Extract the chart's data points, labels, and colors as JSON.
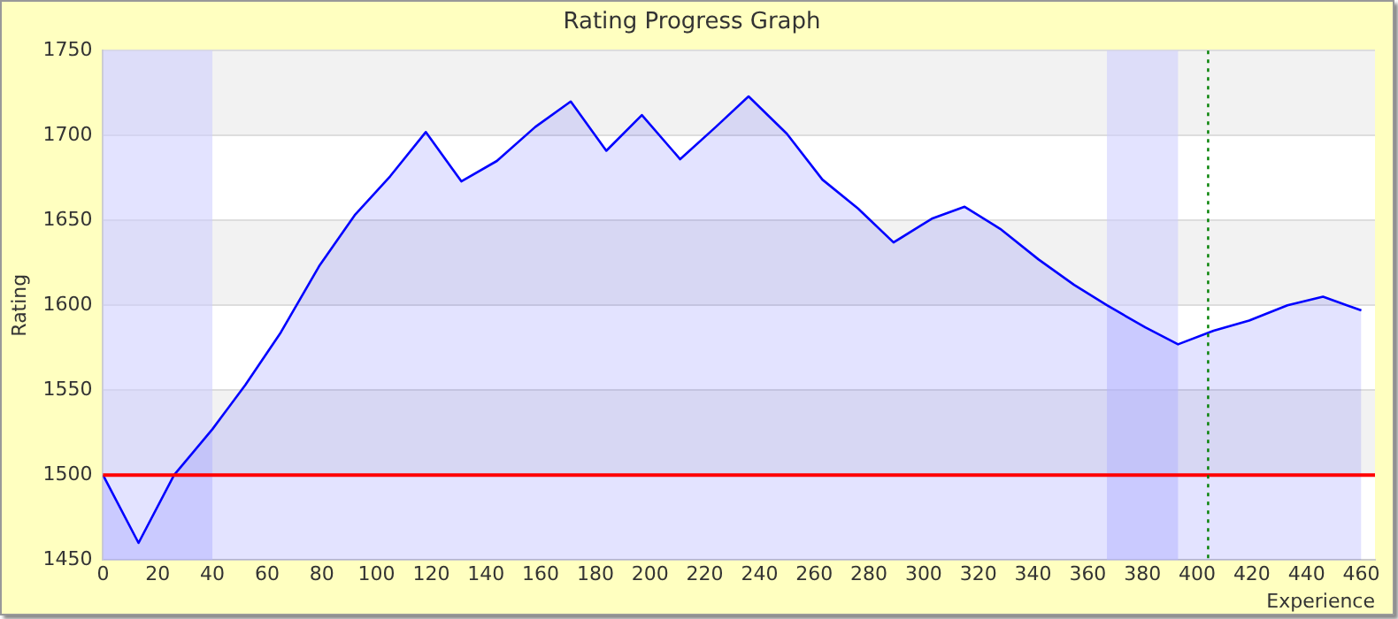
{
  "chart_data": {
    "type": "area",
    "title": "Rating Progress Graph",
    "xlabel": "Experience",
    "ylabel": "Rating",
    "x": [
      0,
      13,
      26,
      40,
      52,
      65,
      79,
      92,
      105,
      118,
      131,
      144,
      158,
      171,
      184,
      197,
      211,
      224,
      236,
      250,
      263,
      276,
      289,
      303,
      315,
      328,
      342,
      355,
      367,
      381,
      393,
      406,
      419,
      433,
      446,
      460
    ],
    "series": [
      {
        "color": "#0000ff",
        "values": [
          1500,
          1460,
          1500,
          1527,
          1553,
          1584,
          1623,
          1653,
          1676,
          1702,
          1673,
          1685,
          1705,
          1720,
          1691,
          1712,
          1686,
          1705,
          1723,
          1701,
          1674,
          1657,
          1637,
          1651,
          1658,
          1645,
          1627,
          1612,
          1600,
          1587,
          1577,
          1585,
          1591,
          1600,
          1605,
          1597
        ]
      }
    ],
    "xlim": [
      0,
      465
    ],
    "xticks": [
      0,
      20,
      40,
      60,
      80,
      100,
      120,
      140,
      160,
      180,
      200,
      220,
      240,
      260,
      280,
      300,
      320,
      340,
      360,
      380,
      400,
      420,
      440,
      460
    ],
    "ylim": [
      1450,
      1750
    ],
    "yticks": [
      1450,
      1500,
      1550,
      1600,
      1650,
      1700,
      1750
    ],
    "grid": "y",
    "legend": false,
    "marker": "none",
    "line_style": "solid",
    "ref_lines": [
      {
        "axis": "y",
        "value": 1500,
        "color": "#ff0000",
        "line_style": "solid"
      },
      {
        "axis": "x",
        "value": 404,
        "color": "#008000",
        "line_style": "dotted"
      }
    ],
    "bands": [
      {
        "axis": "x",
        "from": 0,
        "to": 40,
        "color": "#ccccff"
      },
      {
        "axis": "x",
        "from": 367,
        "to": 393,
        "color": "#ccccff"
      }
    ]
  }
}
